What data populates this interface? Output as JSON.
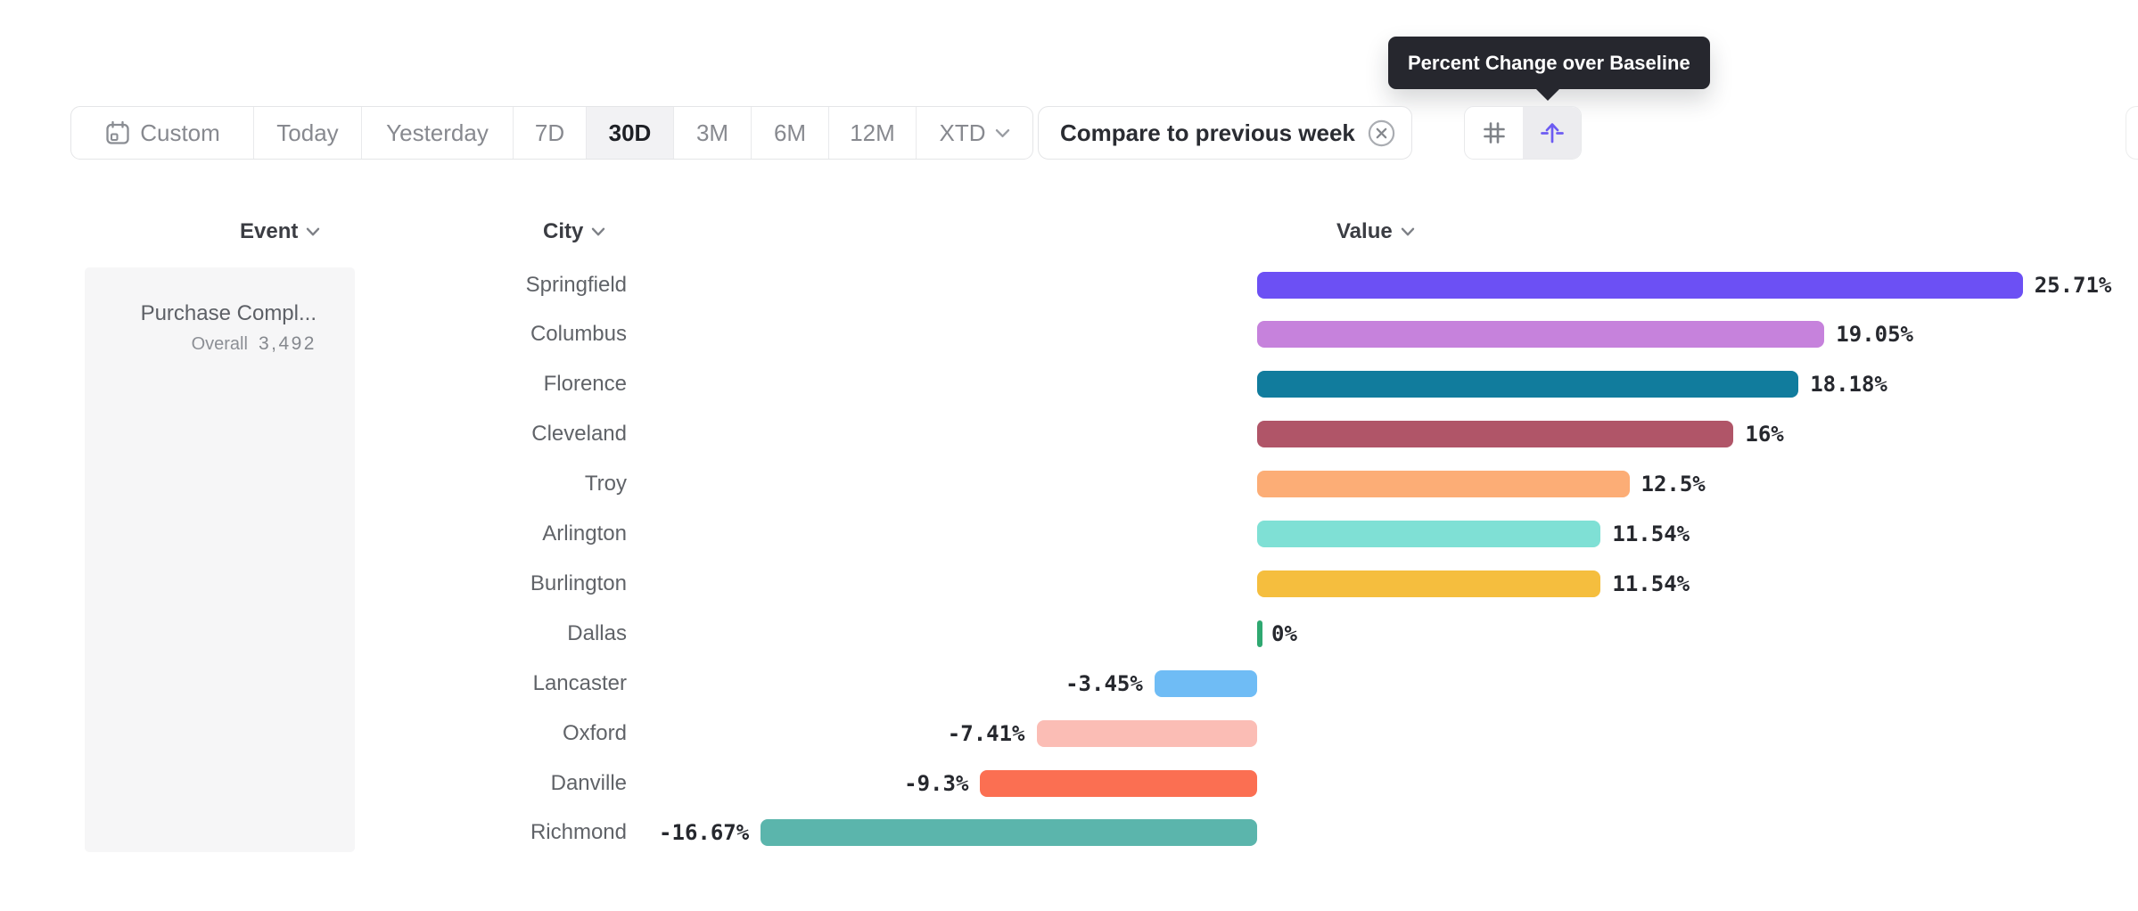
{
  "tooltip": {
    "text": "Percent Change over Baseline"
  },
  "toolbar": {
    "date_ranges": [
      "Custom",
      "Today",
      "Yesterday",
      "7D",
      "30D",
      "3M",
      "6M",
      "12M",
      "XTD"
    ],
    "active_range": "30D",
    "compare_label": "Compare to previous week",
    "icons": [
      "grid-icon",
      "sort-by-value-icon"
    ],
    "active_icon": "sort-by-value-icon",
    "accent_color": "#6c5bf2"
  },
  "table_headers": {
    "event": "Event",
    "city": "City",
    "value": "Value"
  },
  "event_panel": {
    "event_name": "Purchase Compl...",
    "overall_label": "Overall",
    "overall_value": "3,492"
  },
  "chart_data": {
    "type": "bar",
    "orientation": "horizontal",
    "title": "Percent Change over Baseline",
    "unit": "%",
    "baseline": 0,
    "axis_range": [
      -16.67,
      25.71
    ],
    "grid": false,
    "legend": "none",
    "categories": [
      "Springfield",
      "Columbus",
      "Florence",
      "Cleveland",
      "Troy",
      "Arlington",
      "Burlington",
      "Dallas",
      "Lancaster",
      "Oxford",
      "Danville",
      "Richmond"
    ],
    "values": [
      25.71,
      19.05,
      18.18,
      16,
      12.5,
      11.54,
      11.54,
      0,
      -3.45,
      -7.41,
      -9.3,
      -16.67
    ],
    "labels": [
      "25.71%",
      "19.05%",
      "18.18%",
      "16%",
      "12.5%",
      "11.54%",
      "11.54%",
      "0%",
      "-3.45%",
      "-7.41%",
      "-9.3%",
      "-16.67%"
    ],
    "colors": [
      "#6c50f4",
      "#c682dc",
      "#117c9d",
      "#b05568",
      "#fcad76",
      "#7fe0d5",
      "#f5be3e",
      "#2fa871",
      "#6fbcf5",
      "#fbbdb5",
      "#fb6f52",
      "#5bb5ac"
    ]
  }
}
